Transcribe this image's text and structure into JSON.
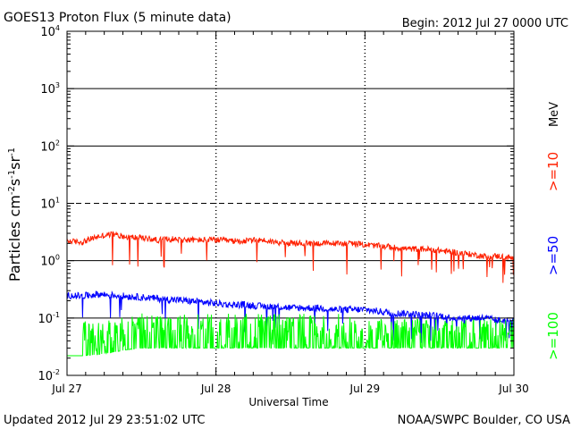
{
  "header": {
    "title": "GOES13 Proton Flux (5 minute data)",
    "begin": "Begin: 2012 Jul 27 0000 UTC"
  },
  "footer": {
    "updated": "Updated 2012 Jul 29 23:51:02 UTC",
    "credit": "NOAA/SWPC Boulder, CO USA"
  },
  "colors": {
    "ge10": "#ff2000",
    "ge50": "#0000ff",
    "ge100": "#00ff00",
    "axis": "#000000"
  },
  "chart_data": {
    "type": "line",
    "title": "GOES13 Proton Flux (5 minute data)",
    "xlabel": "Universal Time",
    "ylabel_base": "Particles cm",
    "ylabel_units": [
      "-2",
      "s",
      "-1",
      "sr",
      "-1"
    ],
    "unit_label": "MeV",
    "y_scale": "log",
    "ylim": [
      0.01,
      10000
    ],
    "y_ticks": [
      {
        "value": 0.01,
        "base": "10",
        "exp": "-2"
      },
      {
        "value": 0.1,
        "base": "10",
        "exp": "-1"
      },
      {
        "value": 1,
        "base": "10",
        "exp": "0"
      },
      {
        "value": 10,
        "base": "10",
        "exp": "1"
      },
      {
        "value": 100,
        "base": "10",
        "exp": "2"
      },
      {
        "value": 1000,
        "base": "10",
        "exp": "3"
      },
      {
        "value": 10000,
        "base": "10",
        "exp": "4"
      }
    ],
    "x_ticks": [
      {
        "day": 0,
        "label": "Jul 27"
      },
      {
        "day": 1,
        "label": "Jul 28"
      },
      {
        "day": 2,
        "label": "Jul 29"
      },
      {
        "day": 3,
        "label": "Jul 30"
      }
    ],
    "xlim_days": [
      0,
      3
    ],
    "solid_lines": [
      1000,
      100,
      1,
      0.1
    ],
    "dashed_lines": [
      10
    ],
    "series": [
      {
        "name": ">=10",
        "color": "#ff2000",
        "x_days": [
          0,
          0.1,
          0.2,
          0.3,
          0.4,
          0.5,
          0.6,
          0.7,
          0.8,
          0.9,
          1,
          1.1,
          1.2,
          1.3,
          1.4,
          1.5,
          1.6,
          1.7,
          1.8,
          1.9,
          2,
          2.1,
          2.2,
          2.3,
          2.4,
          2.5,
          2.6,
          2.7,
          2.8,
          2.9,
          3
        ],
        "values": [
          2.2,
          2.1,
          2.6,
          2.9,
          2.6,
          2.5,
          2.3,
          2.4,
          2.3,
          2.3,
          2.3,
          2.2,
          2.2,
          2.3,
          2.1,
          2.0,
          2.0,
          2.0,
          2.0,
          2.0,
          1.9,
          1.8,
          1.7,
          1.6,
          1.6,
          1.5,
          1.4,
          1.3,
          1.2,
          1.2,
          1.1
        ]
      },
      {
        "name": ">=50",
        "color": "#0000ff",
        "x_days": [
          0,
          0.1,
          0.2,
          0.3,
          0.4,
          0.5,
          0.6,
          0.7,
          0.8,
          0.9,
          1,
          1.1,
          1.2,
          1.3,
          1.4,
          1.5,
          1.6,
          1.7,
          1.8,
          1.9,
          2,
          2.1,
          2.2,
          2.3,
          2.4,
          2.5,
          2.6,
          2.7,
          2.8,
          2.9,
          3
        ],
        "values": [
          0.25,
          0.24,
          0.26,
          0.25,
          0.24,
          0.23,
          0.22,
          0.21,
          0.2,
          0.19,
          0.18,
          0.17,
          0.17,
          0.16,
          0.16,
          0.15,
          0.15,
          0.15,
          0.14,
          0.14,
          0.14,
          0.13,
          0.12,
          0.12,
          0.11,
          0.11,
          0.1,
          0.1,
          0.1,
          0.09,
          0.09
        ]
      },
      {
        "name": ">=100",
        "color": "#00ff00",
        "x_days": [
          0,
          0.1,
          0.2,
          0.3,
          0.4,
          0.5,
          0.6,
          0.7,
          0.8,
          0.9,
          1,
          1.1,
          1.2,
          1.3,
          1.4,
          1.5,
          1.6,
          1.7,
          1.8,
          1.9,
          2,
          2.1,
          2.2,
          2.3,
          2.4,
          2.5,
          2.6,
          2.7,
          2.8,
          2.9,
          3
        ],
        "values": [
          0.022,
          0.022,
          0.023,
          0.025,
          0.028,
          0.03,
          0.03,
          0.03,
          0.03,
          0.03,
          0.03,
          0.03,
          0.03,
          0.03,
          0.03,
          0.03,
          0.03,
          0.03,
          0.03,
          0.03,
          0.03,
          0.03,
          0.03,
          0.03,
          0.03,
          0.03,
          0.03,
          0.03,
          0.03,
          0.03,
          0.03
        ]
      }
    ]
  }
}
